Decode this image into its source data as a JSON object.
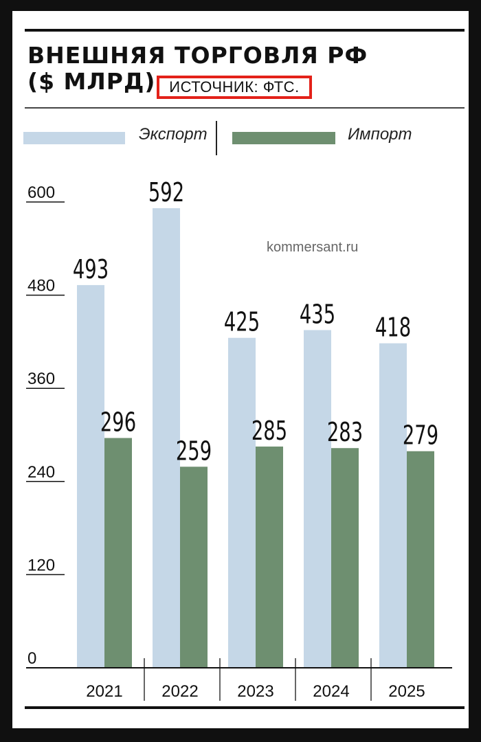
{
  "page": {
    "title_line1": "ВНЕШНЯЯ ТОРГОВЛЯ РФ",
    "title_line2": "($ МЛРД)",
    "source": "ИСТОЧНИК: ФТС.",
    "watermark": "kommersant.ru"
  },
  "colors": {
    "export": "#c5d7e7",
    "import": "#6e8f70",
    "source_border": "#e32119"
  },
  "chart_data": {
    "type": "bar",
    "title": "ВНЕШНЯЯ ТОРГОВЛЯ РФ ($ МЛРД)",
    "categories": [
      "2021",
      "2022",
      "2023",
      "2024",
      "2025"
    ],
    "series": [
      {
        "name": "Экспорт",
        "values": [
          493,
          592,
          425,
          435,
          418
        ]
      },
      {
        "name": "Импорт",
        "values": [
          296,
          259,
          285,
          283,
          279
        ]
      }
    ],
    "yticks": [
      0,
      120,
      240,
      360,
      480,
      600
    ],
    "ylim": [
      0,
      600
    ],
    "legend_position": "top",
    "grid": false
  }
}
